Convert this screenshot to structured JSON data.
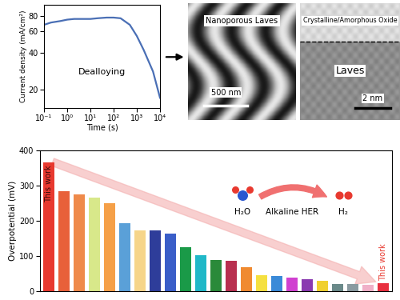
{
  "chart_data": [
    {
      "type": "line",
      "x_label": "Time (s)",
      "y_label": "Current density (mA/cm²)",
      "annotations": [
        "Dealloying"
      ],
      "x": [
        0.1,
        0.2,
        0.5,
        1,
        2,
        5,
        10,
        20,
        50,
        100,
        200,
        500,
        1000,
        2000,
        5000,
        10000
      ],
      "values": [
        68,
        71,
        73,
        75,
        76,
        76,
        76,
        77,
        78,
        78,
        77,
        68,
        55,
        42,
        28,
        17
      ],
      "color": "#4a6fb5",
      "log": true,
      "xlim": [
        0.1,
        10000
      ],
      "xticks": [
        {
          "value": 0.1,
          "label": "10⁻¹"
        },
        {
          "value": 1,
          "label": "10⁰"
        },
        {
          "value": 10,
          "label": "10¹"
        },
        {
          "value": 100,
          "label": "10²"
        },
        {
          "value": 1000,
          "label": "10³"
        },
        {
          "value": 10000,
          "label": "10⁴"
        }
      ],
      "ylim": [
        14,
        100
      ],
      "yticks": [
        20,
        40,
        60,
        80
      ]
    },
    {
      "type": "bar",
      "y_label": "Overpotential (mV)",
      "annotations": [
        "H₂O",
        "Alkaline HER",
        "H₂"
      ],
      "categories": [
        "This work",
        null,
        null,
        null,
        null,
        null,
        null,
        null,
        null,
        null,
        null,
        null,
        null,
        null,
        null,
        null,
        null,
        null,
        null,
        null,
        null,
        null,
        "This work"
      ],
      "values": [
        365,
        282,
        274,
        264,
        250,
        192,
        172,
        172,
        163,
        124,
        102,
        88,
        85,
        68,
        45,
        43,
        38,
        33,
        28,
        20,
        20,
        18,
        22
      ],
      "colors": [
        "#e8392f",
        "#e8603a",
        "#ef8a4a",
        "#d8e88a",
        "#f5a048",
        "#5aa0d8",
        "#f6d58a",
        "#2e3d9a",
        "#3a5ec8",
        "#1a9a48",
        "#20b8c8",
        "#2a8a3a",
        "#b83050",
        "#f08a30",
        "#f5e040",
        "#3a8ad8",
        "#d040d0",
        "#8a3ab0",
        "#f0d030",
        "#6a8a8a",
        "#8a9aa0",
        "#f0b0c8",
        "#e83040"
      ],
      "ylim": [
        0,
        400
      ],
      "yticks": [
        0,
        100,
        200,
        300,
        400
      ],
      "tick_labels": "y"
    }
  ],
  "images": [
    {
      "title": "Nanoporous Laves",
      "scale_bar": "500 nm"
    },
    {
      "labels": [
        "Crystalline/Amorphous Oxide",
        "Laves"
      ],
      "scale_bar": "2 nm"
    }
  ]
}
